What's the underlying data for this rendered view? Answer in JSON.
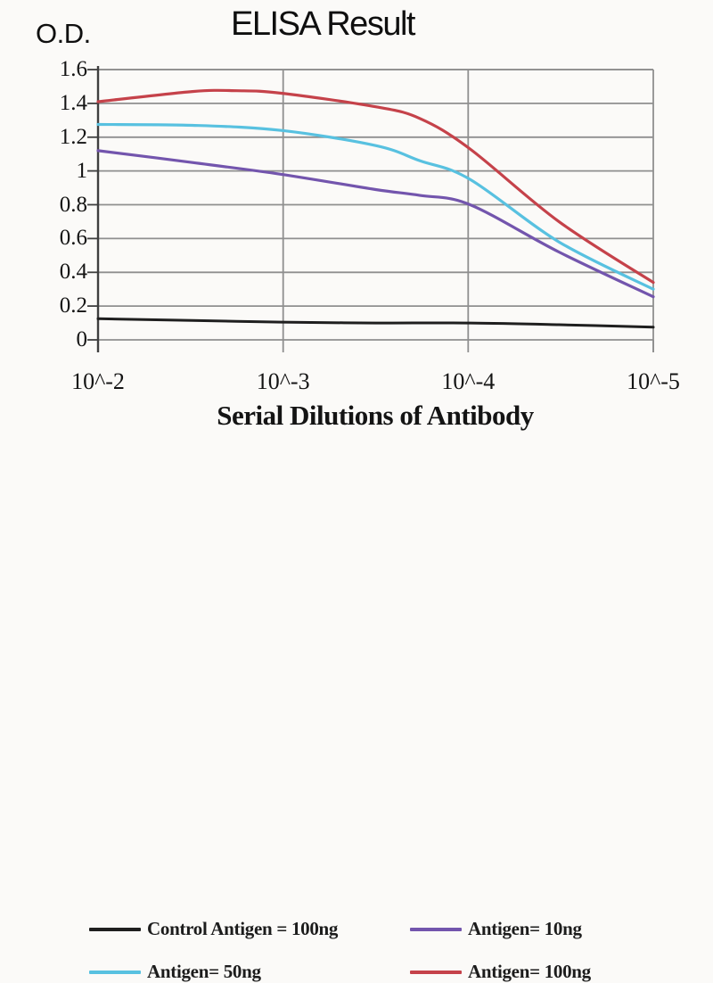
{
  "chart_data": {
    "type": "line",
    "title": "ELISA Result",
    "ylabel": "O.D.",
    "xlabel": "Serial Dilutions of Antibody",
    "x_tick_labels": [
      "10^-2",
      "10^-3",
      "10^-4",
      "10^-5"
    ],
    "y_ticks": [
      0,
      0.2,
      0.4,
      0.6,
      0.8,
      1,
      1.2,
      1.4,
      1.6
    ],
    "y_tick_labels": [
      "0",
      "0.2",
      "0.4",
      "0.6",
      "0.8",
      "1",
      "1.2",
      "1.4",
      "1.6"
    ],
    "ylim": [
      0,
      1.6
    ],
    "grid": true,
    "legend_position": "bottom",
    "series": [
      {
        "name": "Control Antigen = 100ng",
        "color": "#1f1f1f",
        "values_at_ticks": [
          0.12,
          0.11,
          0.1,
          0.08
        ],
        "points": [
          [
            0,
            0.125
          ],
          [
            0.17,
            0.115
          ],
          [
            0.33,
            0.105
          ],
          [
            0.5,
            0.1
          ],
          [
            0.67,
            0.1
          ],
          [
            0.83,
            0.09
          ],
          [
            1,
            0.075
          ]
        ]
      },
      {
        "name": "Antigen= 10ng",
        "color": "#7355ad",
        "values_at_ticks": [
          1.12,
          0.98,
          0.8,
          0.26
        ],
        "points": [
          [
            0,
            1.12
          ],
          [
            0.17,
            1.05
          ],
          [
            0.33,
            0.98
          ],
          [
            0.5,
            0.89
          ],
          [
            0.58,
            0.855
          ],
          [
            0.67,
            0.8
          ],
          [
            0.83,
            0.52
          ],
          [
            1,
            0.255
          ]
        ]
      },
      {
        "name": "Antigen= 50ng",
        "color": "#58c1e0",
        "values_at_ticks": [
          1.28,
          1.24,
          0.95,
          0.3
        ],
        "points": [
          [
            0,
            1.275
          ],
          [
            0.17,
            1.27
          ],
          [
            0.33,
            1.24
          ],
          [
            0.5,
            1.15
          ],
          [
            0.58,
            1.06
          ],
          [
            0.67,
            0.95
          ],
          [
            0.83,
            0.58
          ],
          [
            1,
            0.3
          ]
        ]
      },
      {
        "name": "Antigen= 100ng",
        "color": "#c5424a",
        "values_at_ticks": [
          1.41,
          1.46,
          1.13,
          0.34
        ],
        "points": [
          [
            0,
            1.41
          ],
          [
            0.17,
            1.47
          ],
          [
            0.25,
            1.475
          ],
          [
            0.33,
            1.46
          ],
          [
            0.5,
            1.38
          ],
          [
            0.58,
            1.31
          ],
          [
            0.67,
            1.13
          ],
          [
            0.83,
            0.7
          ],
          [
            1,
            0.34
          ]
        ]
      }
    ],
    "colors": {
      "grid": "#8f8f8f",
      "axis": "#3f3f3f",
      "background": "#fbfaf8",
      "text": "#141414"
    }
  }
}
